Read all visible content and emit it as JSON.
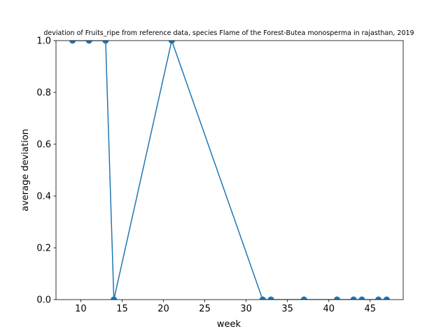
{
  "chart_data": {
    "type": "line",
    "title": "deviation of Fruits_ripe from reference data, species Flame of the Forest-Butea monosperma in rajasthan, 2019",
    "xlabel": "week",
    "ylabel": "average deviation",
    "xlim": [
      7,
      49
    ],
    "ylim": [
      0,
      1
    ],
    "xticks": [
      10,
      15,
      20,
      25,
      30,
      35,
      40,
      45
    ],
    "yticks": [
      0.0,
      0.2,
      0.4,
      0.6,
      0.8,
      1.0
    ],
    "xtick_labels": [
      "10",
      "15",
      "20",
      "25",
      "30",
      "35",
      "40",
      "45"
    ],
    "ytick_labels": [
      "0.0",
      "0.2",
      "0.4",
      "0.6",
      "0.8",
      "1.0"
    ],
    "grid": false,
    "series": [
      {
        "color": "#1f77b4",
        "marker": "circle",
        "x": [
          9,
          11,
          13,
          14,
          21,
          32,
          33,
          37,
          41,
          43,
          44,
          46,
          47
        ],
        "y": [
          1,
          1,
          1,
          0,
          1,
          0,
          0,
          0,
          0,
          0,
          0,
          0,
          0
        ]
      }
    ]
  }
}
